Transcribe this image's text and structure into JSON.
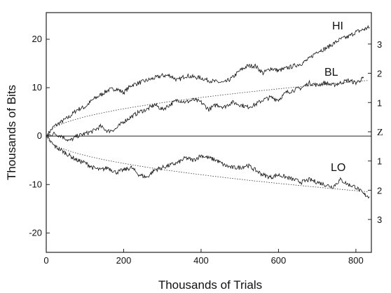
{
  "chart_data": {
    "type": "line",
    "title": "",
    "xlabel": "Thousands of Trials",
    "ylabel": "Thousands of Bits",
    "xlim": [
      0,
      840
    ],
    "ylim": [
      -24,
      25.5
    ],
    "x_ticks": [
      0,
      200,
      400,
      600,
      800
    ],
    "y_ticks": [
      -20,
      -10,
      0,
      10,
      20
    ],
    "right_axis": {
      "ticks": [
        {
          "label": "3",
          "value": 3
        },
        {
          "label": "2",
          "value": 2
        },
        {
          "label": "1",
          "value": 1
        },
        {
          "label": "Z",
          "value": 0
        },
        {
          "label": "1",
          "value": -1
        },
        {
          "label": "2",
          "value": -2
        },
        {
          "label": "3",
          "value": -3
        }
      ],
      "sigma_at_800": 5.75
    },
    "grid": false,
    "legend": "none",
    "series": [
      {
        "name": "HI",
        "x": [
          0,
          20,
          40,
          60,
          80,
          100,
          120,
          140,
          160,
          180,
          200,
          220,
          240,
          260,
          280,
          300,
          320,
          340,
          360,
          380,
          400,
          420,
          440,
          460,
          480,
          500,
          520,
          540,
          560,
          580,
          600,
          620,
          640,
          660,
          680,
          700,
          720,
          740,
          760,
          780,
          800,
          820,
          835
        ],
        "values": [
          0,
          2,
          3,
          4,
          5.5,
          6,
          7.5,
          8.5,
          9.5,
          9.8,
          9,
          10.5,
          11,
          11.5,
          12,
          12.5,
          12.5,
          11.5,
          12.5,
          12.2,
          12,
          11.5,
          11.2,
          11,
          12,
          13.5,
          14.5,
          14.5,
          13,
          14,
          13.5,
          14,
          14.5,
          15,
          16,
          17.5,
          18,
          19,
          20,
          20.5,
          21.5,
          22,
          22.5
        ]
      },
      {
        "name": "BL",
        "x": [
          0,
          20,
          40,
          60,
          80,
          100,
          120,
          140,
          160,
          180,
          200,
          220,
          240,
          260,
          280,
          300,
          320,
          340,
          360,
          380,
          400,
          420,
          440,
          460,
          480,
          500,
          520,
          540,
          560,
          580,
          600,
          620,
          640,
          660,
          680,
          700,
          720,
          740,
          760,
          780,
          800,
          820
        ],
        "values": [
          0,
          0.5,
          0,
          -1,
          0,
          0.5,
          1,
          2,
          1,
          1.5,
          3,
          4,
          5,
          5.5,
          6.5,
          5.5,
          6.5,
          7.5,
          7,
          7.5,
          7,
          5.5,
          6.5,
          6,
          7,
          6.5,
          6,
          6.5,
          7.5,
          8,
          7.5,
          9,
          9.5,
          10,
          11,
          10.5,
          11,
          10.5,
          11,
          11.5,
          11,
          12
        ]
      },
      {
        "name": "LO",
        "x": [
          0,
          20,
          40,
          60,
          80,
          100,
          120,
          140,
          160,
          180,
          200,
          220,
          240,
          260,
          280,
          300,
          320,
          340,
          360,
          380,
          400,
          420,
          440,
          460,
          480,
          500,
          520,
          540,
          560,
          580,
          600,
          620,
          640,
          660,
          680,
          700,
          720,
          740,
          760,
          780,
          800,
          820,
          835
        ],
        "values": [
          0,
          -2,
          -3,
          -4,
          -5,
          -5.5,
          -6.5,
          -7,
          -6.5,
          -7.5,
          -7,
          -6.5,
          -8,
          -8.5,
          -7,
          -6.5,
          -6,
          -5.5,
          -4.5,
          -5,
          -4,
          -4.5,
          -5,
          -6,
          -6.5,
          -6.5,
          -6,
          -7,
          -8,
          -8.5,
          -8,
          -8.5,
          -9,
          -9.5,
          -9,
          -9.5,
          -10,
          -10.5,
          -9,
          -10,
          -10.5,
          -12,
          -12.5
        ]
      }
    ]
  },
  "labels": {
    "hi": "HI",
    "bl": "BL",
    "lo": "LO"
  }
}
